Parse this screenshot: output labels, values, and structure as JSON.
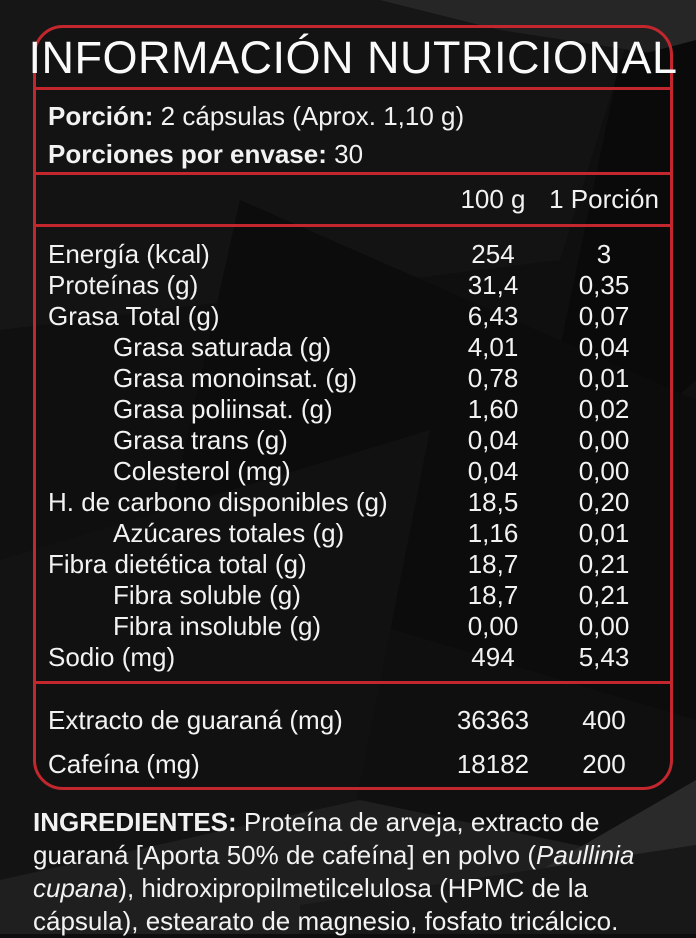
{
  "colors": {
    "accent_red": "#c1272d",
    "text": "#f2f2f2",
    "background": "#0e0e0e",
    "backdrop_light": "#242424",
    "backdrop_mid": "#1a1a1a",
    "backdrop_dark": "#070707"
  },
  "label": {
    "title": "INFORMACIÓN NUTRICIONAL",
    "serving": {
      "label": "Porción:",
      "value": " 2 cápsulas (Aprox. 1,10 g)"
    },
    "servings_per_container": {
      "label": "Porciones por envase:",
      "value": " 30"
    },
    "columns": {
      "per100": "100 g",
      "perServing": "1 Porción"
    },
    "rows": [
      {
        "name": "Energía (kcal)",
        "indent": false,
        "per100": "254",
        "perServing": "3"
      },
      {
        "name": "Proteínas (g)",
        "indent": false,
        "per100": "31,4",
        "perServing": "0,35"
      },
      {
        "name": "Grasa Total (g)",
        "indent": false,
        "per100": "6,43",
        "perServing": "0,07"
      },
      {
        "name": "Grasa saturada (g)",
        "indent": true,
        "per100": "4,01",
        "perServing": "0,04"
      },
      {
        "name": "Grasa monoinsat. (g)",
        "indent": true,
        "per100": "0,78",
        "perServing": "0,01"
      },
      {
        "name": "Grasa poliinsat. (g)",
        "indent": true,
        "per100": "1,60",
        "perServing": "0,02"
      },
      {
        "name": "Grasa trans (g)",
        "indent": true,
        "per100": "0,04",
        "perServing": "0,00"
      },
      {
        "name": "Colesterol (mg)",
        "indent": true,
        "per100": "0,04",
        "perServing": "0,00"
      },
      {
        "name": "H. de carbono disponibles (g)",
        "indent": false,
        "per100": "18,5",
        "perServing": "0,20"
      },
      {
        "name": "Azúcares totales (g)",
        "indent": true,
        "per100": "1,16",
        "perServing": "0,01"
      },
      {
        "name": "Fibra dietética total (g)",
        "indent": false,
        "per100": "18,7",
        "perServing": "0,21"
      },
      {
        "name": "Fibra soluble (g)",
        "indent": true,
        "per100": "18,7",
        "perServing": "0,21"
      },
      {
        "name": "Fibra insoluble (g)",
        "indent": true,
        "per100": "0,00",
        "perServing": "0,00"
      },
      {
        "name": "Sodio (mg)",
        "indent": false,
        "per100": "494",
        "perServing": "5,43"
      }
    ],
    "extra_rows": [
      {
        "name": "Extracto de guaraná (mg)",
        "indent": false,
        "per100": "36363",
        "perServing": "400"
      },
      {
        "name": "Cafeína (mg)",
        "indent": false,
        "per100": "18182",
        "perServing": "200"
      }
    ],
    "ingredients": {
      "label": "INGREDIENTES:",
      "text_before_italic": " Proteína de arveja, extracto de guaraná [Aporta 50% de cafeína] en polvo (",
      "italic": "Paullinia cupana",
      "text_after_italic": "), hidroxipropilmetilcelulosa (HPMC de la cápsula), estearato de magnesio, fosfato tricálcico."
    }
  }
}
